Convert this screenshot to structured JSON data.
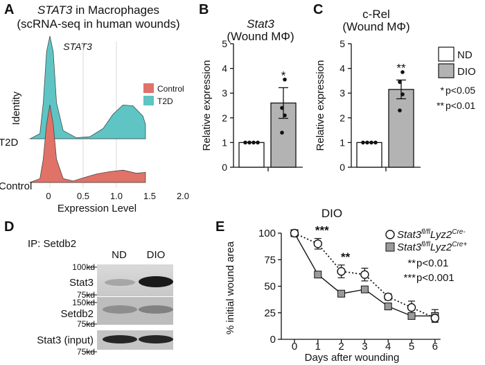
{
  "panels": {
    "A": {
      "label": "A",
      "title_gene": "STAT3",
      "title_rest": " in Macrophages",
      "subtitle": "(scRNA-seq in human wounds)",
      "inner_label": "STAT3"
    },
    "B": {
      "label": "B"
    },
    "C": {
      "label": "C"
    },
    "D": {
      "label": "D",
      "ip_label": "IP: Setdb2",
      "lane_labels": [
        "ND",
        "DIO"
      ],
      "marker_labels": [
        "100kd",
        "75kd",
        "150kd",
        "75kd",
        "75kd"
      ],
      "band_labels": [
        "Stat3",
        "Setdb2",
        "Stat3 (input)"
      ]
    },
    "E": {
      "label": "E"
    }
  },
  "legend_BC": {
    "items": [
      {
        "name": "ND",
        "color": "#ffffff"
      },
      {
        "name": "DIO",
        "color": "#b3b3b3"
      }
    ],
    "sig": [
      {
        "stars": "*",
        "text": "p<0.05"
      },
      {
        "stars": "**",
        "text": "p<0.01"
      }
    ]
  },
  "colors": {
    "control": "#e07268",
    "t2d": "#5fc4c4",
    "dio_bar": "#b3b3b3",
    "nd_bar": "#ffffff"
  },
  "chart_data": [
    {
      "id": "A",
      "type": "area",
      "title": "STAT3 in Macrophages (scRNA-seq in human wounds)",
      "xlabel": "Expression Level",
      "ylabel": "Identity",
      "xticks": [
        "0",
        "0.5",
        "1.0",
        "1.5",
        "2.0"
      ],
      "categories": [
        "T2D",
        "Control"
      ],
      "legend": [
        "Control",
        "T2D"
      ],
      "legend_position": "right",
      "series": [
        {
          "name": "Control",
          "x": [
            -0.3,
            -0.15,
            -0.1,
            -0.05,
            0,
            0.05,
            0.1,
            0.2,
            0.35,
            0.5,
            0.7,
            0.9,
            1.1,
            1.3,
            1.5,
            1.7,
            1.9,
            2.1,
            2.3,
            2.5
          ],
          "values": [
            0,
            0.05,
            0.3,
            0.75,
            1.0,
            0.75,
            0.3,
            0.05,
            0.02,
            0.06,
            0.11,
            0.14,
            0.16,
            0.12,
            0.13,
            0.11,
            0.12,
            0.08,
            0.04,
            0.02
          ]
        },
        {
          "name": "T2D",
          "x": [
            -0.3,
            -0.15,
            -0.1,
            -0.05,
            0,
            0.05,
            0.1,
            0.2,
            0.4,
            0.6,
            0.8,
            0.95,
            1.1,
            1.25,
            1.4,
            1.55,
            1.7,
            1.9,
            2.1,
            2.3,
            2.5,
            2.7
          ],
          "values": [
            0,
            0.05,
            0.35,
            0.85,
            1.0,
            0.85,
            0.35,
            0.08,
            0.01,
            0.02,
            0.1,
            0.24,
            0.33,
            0.32,
            0.22,
            0.14,
            0.08,
            0.05,
            0.03,
            0.02,
            0.01,
            0.01
          ]
        }
      ]
    },
    {
      "id": "B",
      "type": "bar",
      "title": "Stat3",
      "subtitle": "(Wound MΦ)",
      "ylabel": "Relative expression",
      "ylim": [
        0,
        5
      ],
      "yticks": [
        0,
        1,
        2,
        3,
        4,
        5
      ],
      "categories": [
        "ND",
        "DIO"
      ],
      "values": [
        1.0,
        2.6
      ],
      "errors": [
        0,
        0.62
      ],
      "points": [
        [
          1,
          1,
          1,
          1
        ],
        [
          3.55,
          2.4,
          2.1,
          1.4
        ]
      ],
      "significance": [
        "",
        "*"
      ]
    },
    {
      "id": "C",
      "type": "bar",
      "title": "c-Rel",
      "subtitle": "(Wound MΦ)",
      "ylabel": "Relative expression",
      "ylim": [
        0,
        5
      ],
      "yticks": [
        0,
        1,
        2,
        3,
        4,
        5
      ],
      "categories": [
        "ND",
        "DIO"
      ],
      "values": [
        1.0,
        3.15
      ],
      "errors": [
        0,
        0.38
      ],
      "points": [
        [
          1,
          1,
          1,
          1
        ],
        [
          3.85,
          3.45,
          2.95,
          2.3
        ]
      ],
      "significance": [
        "",
        "**"
      ]
    },
    {
      "id": "E",
      "type": "line",
      "title": "DIO",
      "xlabel": "Days after wounding",
      "ylabel": "% initial wound area",
      "x": [
        0,
        1,
        2,
        3,
        4,
        5,
        6
      ],
      "ylim": [
        0,
        100
      ],
      "yticks": [
        0,
        25,
        50,
        75,
        100
      ],
      "series": [
        {
          "name": "Stat3fl/flLyz2Cre-",
          "gene": "Stat3",
          "sup": "fl/fl",
          "gene2": "Lyz2",
          "sup2": "Cre-",
          "values": [
            100,
            90,
            64,
            61,
            40,
            30,
            20
          ],
          "errors": [
            0,
            5,
            6,
            6,
            3,
            6,
            3
          ],
          "marker": "open-circle",
          "line": "dotted"
        },
        {
          "name": "Stat3fl/flLyz2Cre+",
          "gene": "Stat3",
          "sup": "fl/fl",
          "gene2": "Lyz2",
          "sup2": "Cre+",
          "values": [
            100,
            61,
            43,
            47,
            31,
            22,
            22
          ],
          "errors": [
            0,
            3,
            3,
            2,
            2,
            2,
            6
          ],
          "marker": "gray-square",
          "line": "solid"
        }
      ],
      "significance": [
        {
          "x": 1,
          "stars": "***"
        },
        {
          "x": 2,
          "stars": "**"
        }
      ],
      "sig_legend": [
        {
          "stars": "**",
          "text": "p<0.01"
        },
        {
          "stars": "***",
          "text": "p<0.001"
        }
      ]
    }
  ]
}
